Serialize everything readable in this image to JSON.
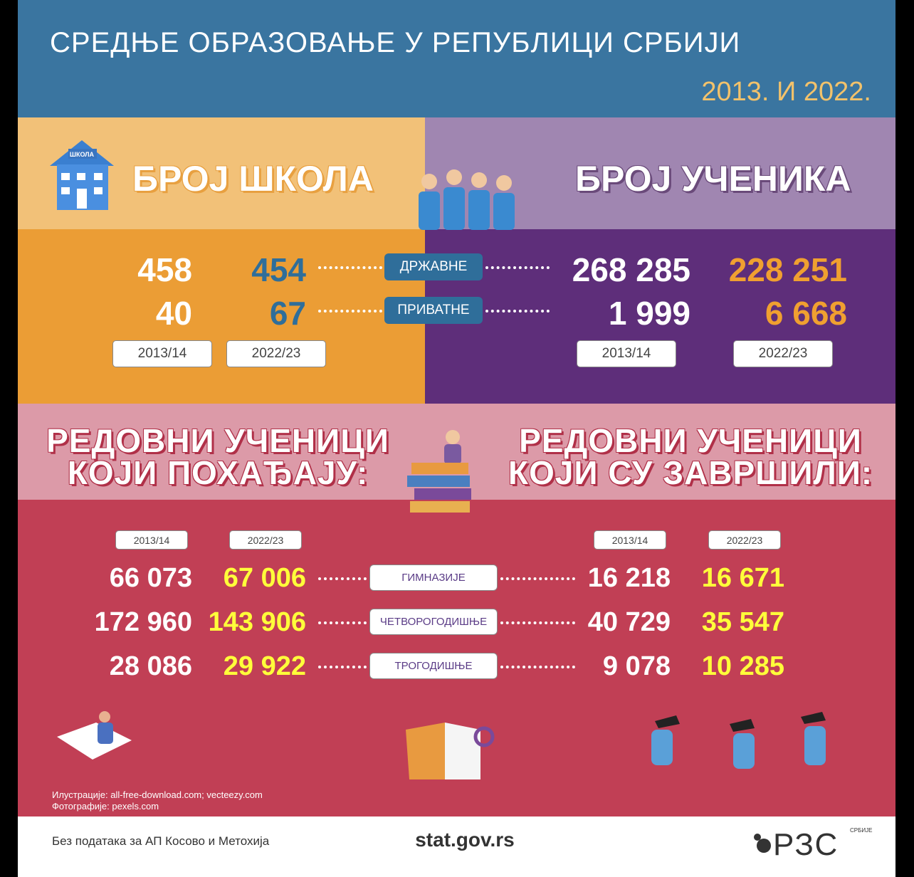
{
  "header": {
    "title": "СРЕДЊЕ ОБРАЗОВАЊЕ У РЕПУБЛИЦИ СРБИЈИ",
    "subtitle": "2013. И 2022."
  },
  "categories": [
    "ДРЖАВНЕ",
    "ПРИВАТНЕ"
  ],
  "schools": {
    "heading": "БРОЈ ШКОЛА",
    "icon_label": "ШКОЛА",
    "years": [
      "2013/14",
      "2022/23"
    ],
    "values": [
      [
        "458",
        "454"
      ],
      [
        "40",
        "67"
      ]
    ]
  },
  "students": {
    "heading": "БРОЈ УЧЕНИКА",
    "years": [
      "2013/14",
      "2022/23"
    ],
    "values": [
      [
        "268 285",
        "228 251"
      ],
      [
        "1 999",
        "6 668"
      ]
    ]
  },
  "types": [
    "ГИМНАЗИЈЕ",
    "ЧЕТВОРОГОДИШЊЕ",
    "ТРОГОДИШЊЕ"
  ],
  "attending": {
    "heading": [
      "РЕДОВНИ УЧЕНИЦИ",
      "КОЈИ ПОХАЂАЈУ:"
    ],
    "years": [
      "2013/14",
      "2022/23"
    ],
    "values": [
      [
        "66 073",
        "67 006"
      ],
      [
        "172 960",
        "143 906"
      ],
      [
        "28 086",
        "29 922"
      ]
    ]
  },
  "completed": {
    "heading": [
      "РЕДОВНИ УЧЕНИЦИ",
      "КОЈИ СУ ЗАВРШИЛИ:"
    ],
    "years": [
      "2013/14",
      "2022/23"
    ],
    "values": [
      [
        "16 218",
        "16 671"
      ],
      [
        "40 729",
        "35 547"
      ],
      [
        "9 078",
        "10 285"
      ]
    ]
  },
  "credits": [
    "Илустрације: all-free-download.com; vecteezy.com",
    "Фотографије: pexels.com"
  ],
  "footer": {
    "note": "Без података за АП Косово и Метохија",
    "website": "stat.gov.rs",
    "logo": "РЗС",
    "logo_sub": "СРБИЈЕ"
  }
}
